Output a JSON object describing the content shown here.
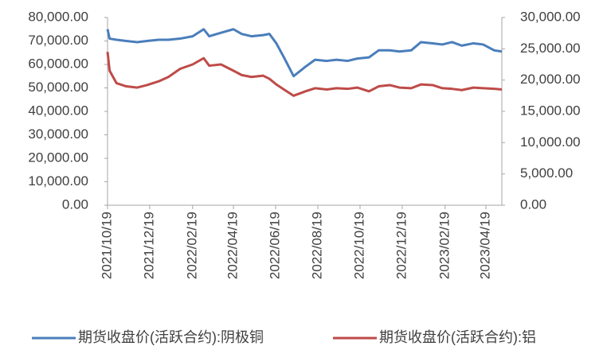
{
  "chart_data": {
    "type": "line",
    "x": [
      "2021/10/19",
      "2021/10/22",
      "2021/11/01",
      "2021/11/15",
      "2021/12/01",
      "2021/12/15",
      "2022/01/01",
      "2022/01/15",
      "2022/02/01",
      "2022/02/19",
      "2022/03/07",
      "2022/03/15",
      "2022/04/01",
      "2022/04/19",
      "2022/05/01",
      "2022/05/15",
      "2022/06/01",
      "2022/06/10",
      "2022/06/20",
      "2022/07/01",
      "2022/07/15",
      "2022/08/01",
      "2022/08/15",
      "2022/09/01",
      "2022/09/15",
      "2022/10/01",
      "2022/10/15",
      "2022/11/01",
      "2022/11/15",
      "2022/12/01",
      "2022/12/15",
      "2023/01/01",
      "2023/01/15",
      "2023/02/01",
      "2023/02/15",
      "2023/03/01",
      "2023/03/15",
      "2023/04/01",
      "2023/04/15",
      "2023/05/01",
      "2023/05/12"
    ],
    "series": [
      {
        "name": "期货收盘价(活跃合约):阴极铜",
        "color": "#4a7ebb",
        "axis": "y",
        "values": [
          75000,
          71000,
          70500,
          70000,
          69500,
          70000,
          70500,
          70500,
          71000,
          72000,
          75000,
          72000,
          73500,
          75000,
          73000,
          72000,
          72500,
          73000,
          69000,
          63000,
          55000,
          59000,
          62000,
          61500,
          62000,
          61500,
          62500,
          63000,
          66000,
          66000,
          65500,
          66000,
          69500,
          69000,
          68500,
          69500,
          68000,
          69000,
          68500,
          66000,
          65500
        ]
      },
      {
        "name": "期货收盘价(活跃合约):铝",
        "color": "#be4b48",
        "axis": "y2",
        "values": [
          24500,
          21500,
          19500,
          19000,
          18800,
          19200,
          19800,
          20500,
          21800,
          22500,
          23500,
          22300,
          22500,
          21500,
          20800,
          20500,
          20700,
          20200,
          19300,
          18500,
          17500,
          18200,
          18700,
          18500,
          18700,
          18600,
          18800,
          18200,
          19000,
          19200,
          18800,
          18700,
          19300,
          19200,
          18700,
          18600,
          18400,
          18800,
          18700,
          18600,
          18500
        ]
      }
    ],
    "xlim": [
      "2021/10/19",
      "2023/05/12"
    ],
    "xticks": [
      "2021/10/19",
      "2021/12/19",
      "2022/02/19",
      "2022/04/19",
      "2022/06/19",
      "2022/08/19",
      "2022/10/19",
      "2022/12/19",
      "2023/02/19",
      "2023/04/19"
    ],
    "ylim": [
      0,
      80000
    ],
    "yticks": [
      {
        "value": 0,
        "label": "0.00"
      },
      {
        "value": 10000,
        "label": "10,000.00"
      },
      {
        "value": 20000,
        "label": "20,000.00"
      },
      {
        "value": 30000,
        "label": "30,000.00"
      },
      {
        "value": 40000,
        "label": "40,000.00"
      },
      {
        "value": 50000,
        "label": "50,000.00"
      },
      {
        "value": 60000,
        "label": "60,000.00"
      },
      {
        "value": 70000,
        "label": "70,000.00"
      },
      {
        "value": 80000,
        "label": "80,000.00"
      }
    ],
    "y2lim": [
      0,
      30000
    ],
    "y2ticks": [
      {
        "value": 0,
        "label": "0.00"
      },
      {
        "value": 5000,
        "label": "5,000.00"
      },
      {
        "value": 10000,
        "label": "10,000.00"
      },
      {
        "value": 15000,
        "label": "15,000.00"
      },
      {
        "value": 20000,
        "label": "20,000.00"
      },
      {
        "value": 25000,
        "label": "25,000.00"
      },
      {
        "value": 30000,
        "label": "30,000.00"
      }
    ],
    "grid": false,
    "legend": "bottom"
  }
}
